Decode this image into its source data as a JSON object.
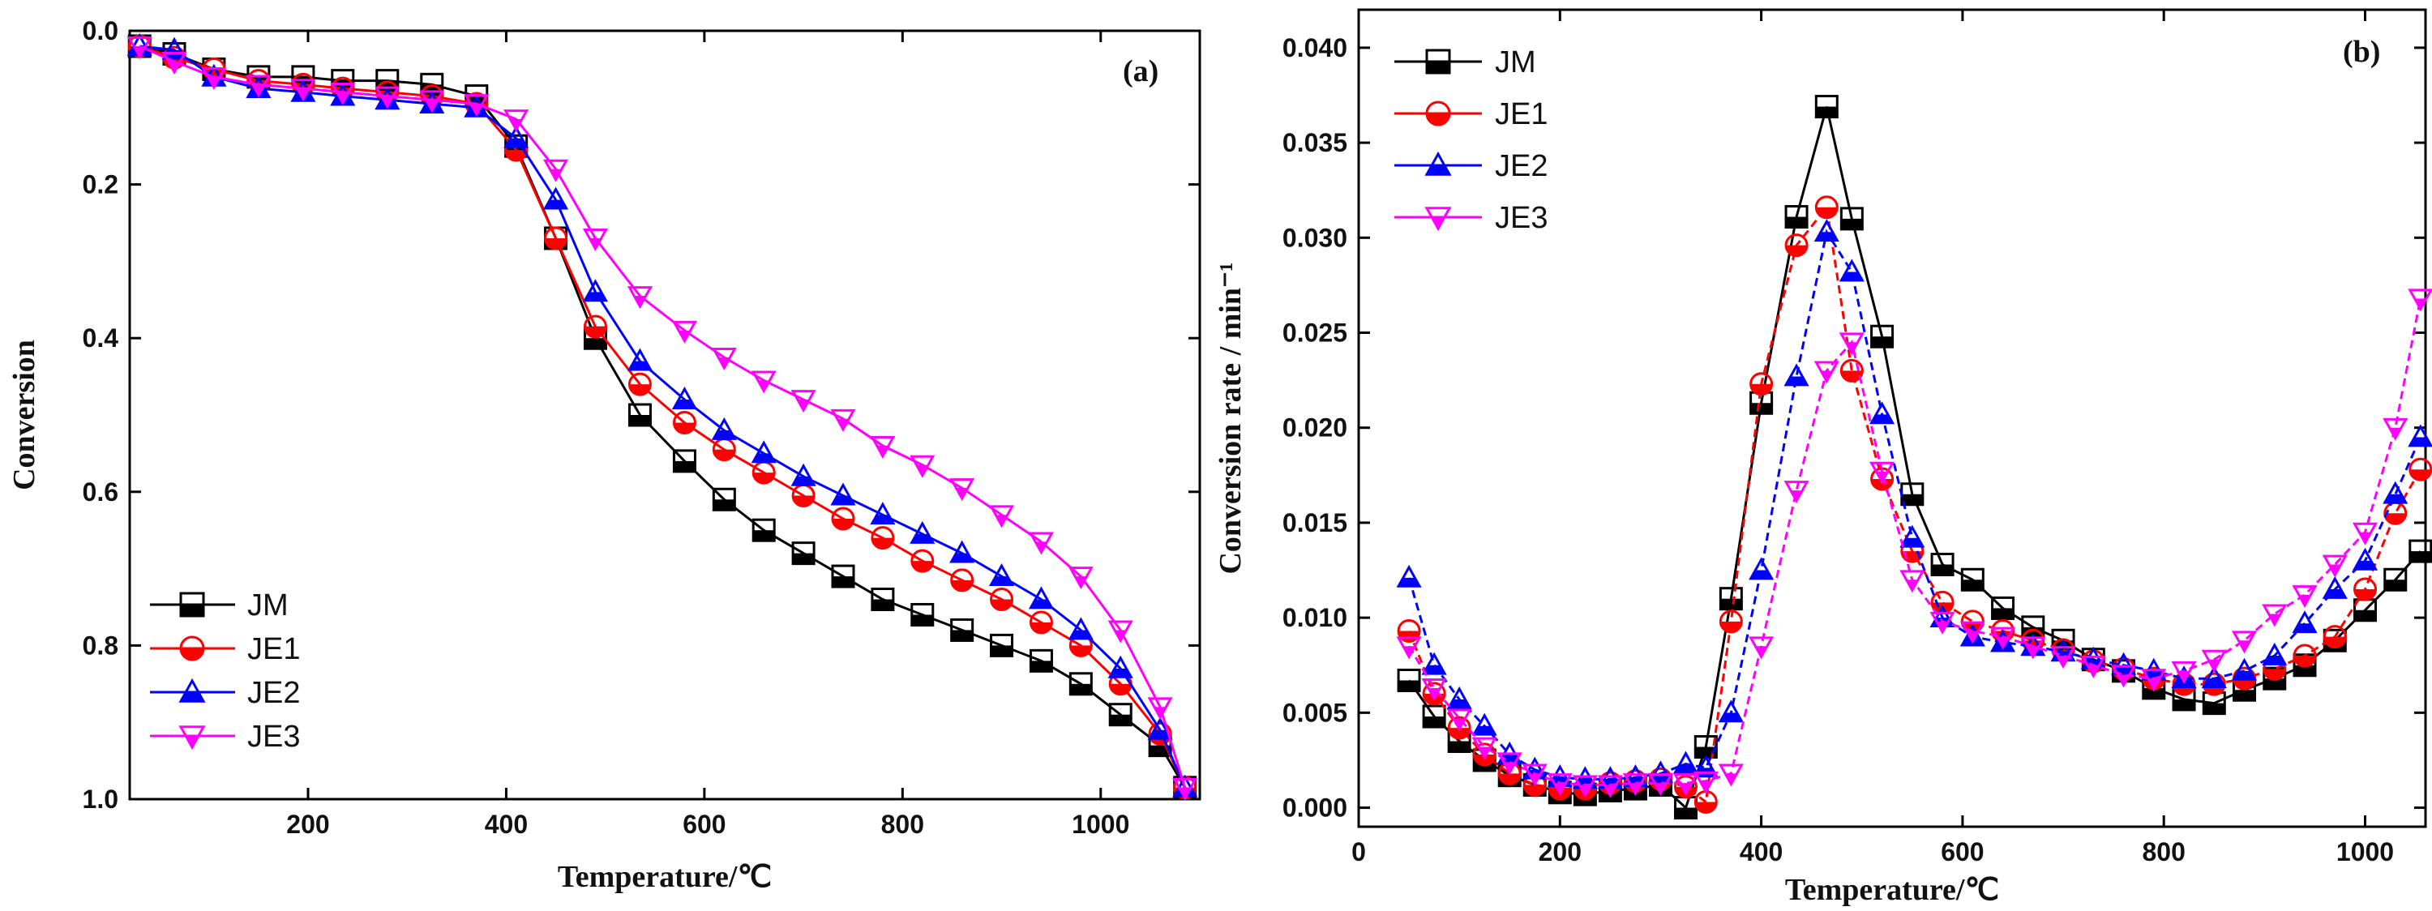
{
  "chart_data": [
    {
      "type": "line",
      "panel_label": "(a)",
      "xlabel": "Temperature/℃",
      "ylabel": "Conversion",
      "xlim": [
        20,
        1100
      ],
      "ylim": [
        0,
        1
      ],
      "y_inverted": true,
      "xticks": [
        200,
        400,
        600,
        800,
        1000
      ],
      "yticks": [
        0.0,
        0.2,
        0.4,
        0.6,
        0.8,
        1.0
      ],
      "ytick_labels": [
        "0.0",
        "0.2",
        "0.4",
        "0.6",
        "0.8",
        "1.0"
      ],
      "legend_position": "bottom-left",
      "series": [
        {
          "name": "JM",
          "color": "#000000",
          "marker": "square",
          "x": [
            30,
            65,
            105,
            150,
            195,
            235,
            280,
            325,
            370,
            410,
            450,
            490,
            535,
            580,
            620,
            660,
            700,
            740,
            780,
            820,
            860,
            900,
            940,
            980,
            1020,
            1060,
            1085
          ],
          "y": [
            0.02,
            0.03,
            0.05,
            0.06,
            0.06,
            0.065,
            0.065,
            0.07,
            0.085,
            0.15,
            0.27,
            0.4,
            0.5,
            0.56,
            0.61,
            0.65,
            0.68,
            0.71,
            0.74,
            0.76,
            0.78,
            0.8,
            0.82,
            0.85,
            0.89,
            0.93,
            0.985
          ]
        },
        {
          "name": "JE1",
          "color": "#ff0000",
          "marker": "circle",
          "x": [
            30,
            65,
            105,
            150,
            195,
            235,
            280,
            325,
            370,
            410,
            450,
            490,
            535,
            580,
            620,
            660,
            700,
            740,
            780,
            820,
            860,
            900,
            940,
            980,
            1020,
            1060,
            1085
          ],
          "y": [
            0.02,
            0.035,
            0.05,
            0.065,
            0.07,
            0.075,
            0.08,
            0.085,
            0.095,
            0.155,
            0.27,
            0.385,
            0.46,
            0.51,
            0.545,
            0.575,
            0.605,
            0.635,
            0.66,
            0.69,
            0.715,
            0.74,
            0.77,
            0.8,
            0.85,
            0.915,
            0.985
          ]
        },
        {
          "name": "JE2",
          "color": "#0000ff",
          "marker": "triangle-up",
          "x": [
            30,
            65,
            105,
            150,
            195,
            235,
            280,
            325,
            370,
            410,
            450,
            490,
            535,
            580,
            620,
            660,
            700,
            740,
            780,
            820,
            860,
            900,
            940,
            980,
            1020,
            1060,
            1085
          ],
          "y": [
            0.02,
            0.025,
            0.06,
            0.075,
            0.08,
            0.085,
            0.09,
            0.095,
            0.1,
            0.14,
            0.22,
            0.34,
            0.43,
            0.48,
            0.52,
            0.55,
            0.58,
            0.605,
            0.63,
            0.655,
            0.68,
            0.71,
            0.74,
            0.78,
            0.83,
            0.91,
            0.985
          ]
        },
        {
          "name": "JE3",
          "color": "#ff00ff",
          "marker": "triangle-down",
          "x": [
            30,
            65,
            105,
            150,
            195,
            235,
            280,
            325,
            370,
            410,
            450,
            490,
            535,
            580,
            620,
            660,
            700,
            740,
            780,
            820,
            860,
            900,
            940,
            980,
            1020,
            1060,
            1085
          ],
          "y": [
            0.02,
            0.04,
            0.06,
            0.07,
            0.075,
            0.08,
            0.085,
            0.09,
            0.095,
            0.115,
            0.18,
            0.27,
            0.345,
            0.39,
            0.425,
            0.455,
            0.48,
            0.505,
            0.54,
            0.565,
            0.595,
            0.63,
            0.665,
            0.71,
            0.78,
            0.88,
            0.985
          ]
        }
      ]
    },
    {
      "type": "line",
      "panel_label": "(b)",
      "xlabel": "Temperature/℃",
      "ylabel": "Conversion rate / min⁻¹",
      "xlim": [
        0,
        1060
      ],
      "ylim": [
        -0.001,
        0.042
      ],
      "xticks": [
        0,
        200,
        400,
        600,
        800,
        1000
      ],
      "yticks": [
        0.0,
        0.005,
        0.01,
        0.015,
        0.02,
        0.025,
        0.03,
        0.035,
        0.04
      ],
      "ytick_labels": [
        "0.000",
        "0.005",
        "0.010",
        "0.015",
        "0.020",
        "0.025",
        "0.030",
        "0.035",
        "0.040"
      ],
      "legend_position": "top-left",
      "series": [
        {
          "name": "JM",
          "color": "#000000",
          "marker": "square",
          "x": [
            50,
            75,
            100,
            125,
            150,
            175,
            200,
            225,
            250,
            275,
            300,
            325,
            345,
            370,
            400,
            435,
            465,
            490,
            520,
            550,
            580,
            610,
            640,
            670,
            700,
            730,
            760,
            790,
            820,
            850,
            880,
            910,
            940,
            970,
            1000,
            1030,
            1055
          ],
          "y": [
            0.0067,
            0.0048,
            0.0035,
            0.0025,
            0.0017,
            0.0012,
            0.0008,
            0.0007,
            0.0009,
            0.001,
            0.0012,
            0.0,
            0.0032,
            0.011,
            0.0213,
            0.0311,
            0.0369,
            0.031,
            0.0248,
            0.0165,
            0.0128,
            0.012,
            0.0105,
            0.0095,
            0.0088,
            0.0078,
            0.0072,
            0.0063,
            0.0057,
            0.0055,
            0.0062,
            0.0068,
            0.0075,
            0.0088,
            0.0104,
            0.012,
            0.0135
          ]
        },
        {
          "name": "JE1",
          "color": "#ff0000",
          "marker": "circle",
          "x": [
            50,
            75,
            100,
            125,
            150,
            175,
            200,
            225,
            250,
            275,
            300,
            325,
            345,
            370,
            400,
            435,
            465,
            490,
            520,
            550,
            580,
            610,
            640,
            670,
            700,
            730,
            760,
            790,
            820,
            850,
            880,
            910,
            940,
            970,
            1000,
            1030,
            1055
          ],
          "y": [
            0.0093,
            0.006,
            0.0042,
            0.0028,
            0.0018,
            0.0012,
            0.001,
            0.001,
            0.0013,
            0.0014,
            0.0015,
            0.0011,
            0.0003,
            0.0098,
            0.0223,
            0.0296,
            0.0316,
            0.023,
            0.0173,
            0.0135,
            0.0108,
            0.0098,
            0.0093,
            0.0088,
            0.0083,
            0.0077,
            0.0073,
            0.0068,
            0.0065,
            0.0065,
            0.0068,
            0.0073,
            0.008,
            0.009,
            0.0115,
            0.0155,
            0.0178
          ]
        },
        {
          "name": "JE2",
          "color": "#0000ff",
          "marker": "triangle-up",
          "x": [
            50,
            75,
            100,
            125,
            150,
            175,
            200,
            225,
            250,
            275,
            300,
            325,
            345,
            370,
            400,
            435,
            465,
            490,
            520,
            550,
            580,
            610,
            640,
            670,
            700,
            730,
            760,
            790,
            820,
            850,
            880,
            910,
            940,
            970,
            1000,
            1030,
            1055
          ],
          "y": [
            0.0121,
            0.0075,
            0.0057,
            0.0043,
            0.0028,
            0.002,
            0.0016,
            0.0015,
            0.0015,
            0.0016,
            0.0018,
            0.0023,
            0.0021,
            0.005,
            0.0125,
            0.0227,
            0.0303,
            0.0282,
            0.0207,
            0.0142,
            0.01,
            0.009,
            0.0087,
            0.0085,
            0.0082,
            0.0078,
            0.0075,
            0.0072,
            0.0068,
            0.0068,
            0.0072,
            0.008,
            0.0097,
            0.0115,
            0.013,
            0.0165,
            0.0195
          ]
        },
        {
          "name": "JE3",
          "color": "#ff00ff",
          "marker": "triangle-down",
          "x": [
            50,
            75,
            100,
            125,
            150,
            175,
            200,
            225,
            250,
            275,
            300,
            325,
            345,
            370,
            400,
            435,
            465,
            490,
            520,
            550,
            580,
            610,
            640,
            670,
            700,
            730,
            760,
            790,
            820,
            850,
            880,
            910,
            940,
            970,
            1000,
            1030,
            1055
          ],
          "y": [
            0.0085,
            0.0063,
            0.0047,
            0.0032,
            0.0024,
            0.0018,
            0.0013,
            0.0012,
            0.0012,
            0.0013,
            0.0013,
            0.0013,
            0.0014,
            0.0018,
            0.0085,
            0.0167,
            0.023,
            0.0245,
            0.0177,
            0.012,
            0.0098,
            0.0093,
            0.009,
            0.0085,
            0.008,
            0.0075,
            0.007,
            0.0068,
            0.0072,
            0.0078,
            0.0088,
            0.0102,
            0.0112,
            0.0128,
            0.0145,
            0.02,
            0.0268
          ]
        }
      ]
    }
  ]
}
